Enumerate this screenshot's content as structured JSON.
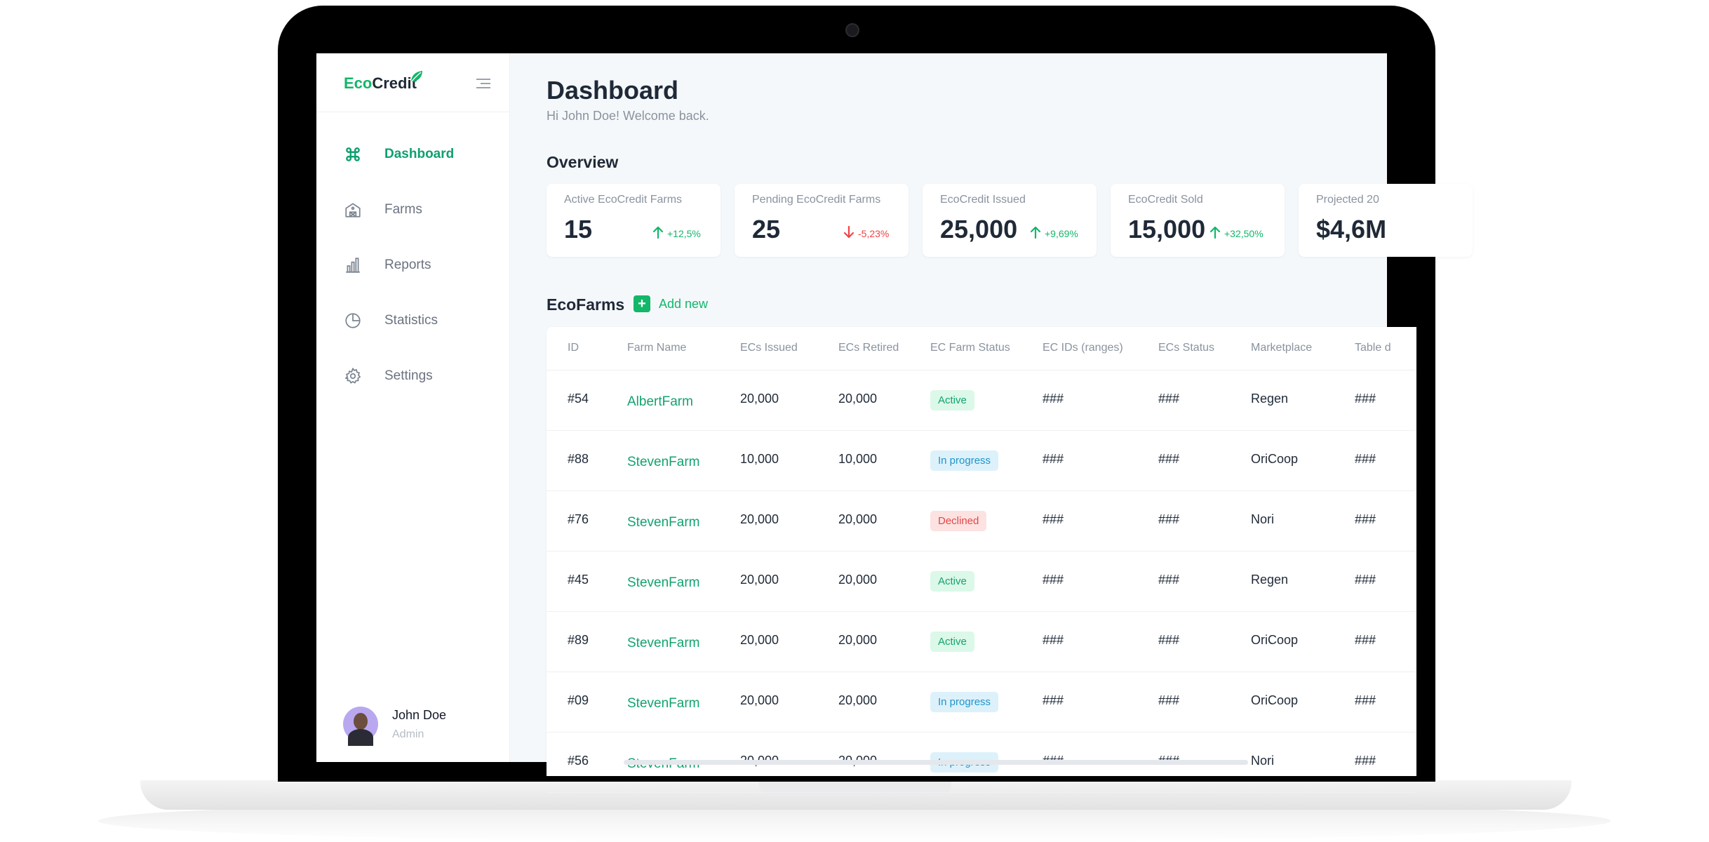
{
  "app": {
    "logo_prefix": "Eco",
    "logo_suffix": "Credit"
  },
  "sidebar": {
    "items": [
      {
        "label": "Dashboard",
        "icon": "command-icon",
        "active": true
      },
      {
        "label": "Farms",
        "icon": "farm-icon",
        "active": false
      },
      {
        "label": "Reports",
        "icon": "bar-chart-icon",
        "active": false
      },
      {
        "label": "Statistics",
        "icon": "pie-chart-icon",
        "active": false
      },
      {
        "label": "Settings",
        "icon": "gear-icon",
        "active": false
      }
    ],
    "user": {
      "name": "John Doe",
      "role": "Admin"
    }
  },
  "header": {
    "title": "Dashboard",
    "subtitle": "Hi John Doe! Welcome back."
  },
  "overview": {
    "title": "Overview",
    "cards": [
      {
        "label": "Active EcoCredit Farms",
        "value": "15",
        "change": "+12,5%",
        "direction": "up"
      },
      {
        "label": "Pending EcoCredit Farms",
        "value": "25",
        "change": "-5,23%",
        "direction": "down"
      },
      {
        "label": "EcoCredit Issued",
        "value": "25,000",
        "change": "+9,69%",
        "direction": "up"
      },
      {
        "label": "EcoCredit Sold",
        "value": "15,000",
        "change": "+32,50%",
        "direction": "up"
      },
      {
        "label": "Projected 20",
        "value": "$4,6M",
        "change": "",
        "direction": ""
      }
    ]
  },
  "ecofarms": {
    "title": "EcoFarms",
    "add_label": "Add new",
    "columns": [
      "ID",
      "Farm Name",
      "ECs Issued",
      "ECs Retired",
      "EC Farm Status",
      "EC IDs (ranges)",
      "ECs Status",
      "Marketplace",
      "Table d"
    ],
    "rows": [
      {
        "id": "#54",
        "name": "AlbertFarm",
        "issued": "20,000",
        "retired": "20,000",
        "status": "Active",
        "ids": "###",
        "ecs": "###",
        "market": "Regen",
        "table": "###"
      },
      {
        "id": "#88",
        "name": "StevenFarm",
        "issued": "10,000",
        "retired": "10,000",
        "status": "In progress",
        "ids": "###",
        "ecs": "###",
        "market": "OriCoop",
        "table": "###"
      },
      {
        "id": "#76",
        "name": "StevenFarm",
        "issued": "20,000",
        "retired": "20,000",
        "status": "Declined",
        "ids": "###",
        "ecs": "###",
        "market": "Nori",
        "table": "###"
      },
      {
        "id": "#45",
        "name": "StevenFarm",
        "issued": "20,000",
        "retired": "20,000",
        "status": "Active",
        "ids": "###",
        "ecs": "###",
        "market": "Regen",
        "table": "###"
      },
      {
        "id": "#89",
        "name": "StevenFarm",
        "issued": "20,000",
        "retired": "20,000",
        "status": "Active",
        "ids": "###",
        "ecs": "###",
        "market": "OriCoop",
        "table": "###"
      },
      {
        "id": "#09",
        "name": "StevenFarm",
        "issued": "20,000",
        "retired": "20,000",
        "status": "In progress",
        "ids": "###",
        "ecs": "###",
        "market": "OriCoop",
        "table": "###"
      },
      {
        "id": "#56",
        "name": "StevenFarm",
        "issued": "20,000",
        "retired": "20,000",
        "status": "In progress",
        "ids": "###",
        "ecs": "###",
        "market": "Nori",
        "table": "###"
      }
    ]
  },
  "colors": {
    "accent": "#12b76a",
    "accent_text": "#0f9f6e",
    "down": "#ef4444",
    "progress": "#1e95c9"
  }
}
